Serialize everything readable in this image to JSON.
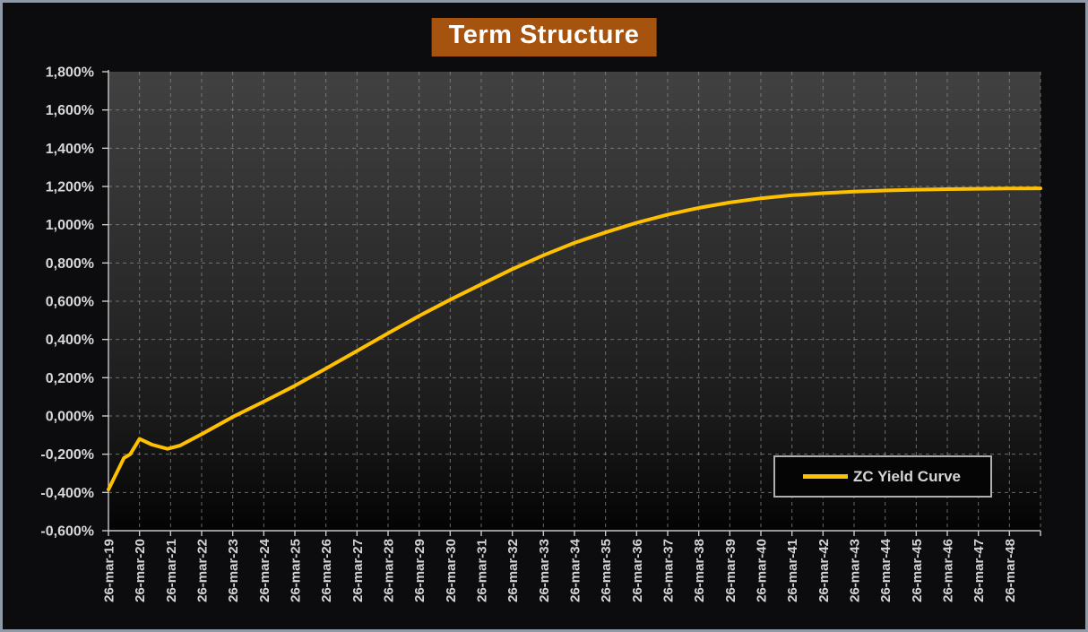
{
  "window": {
    "background_color": "#0C0C0E",
    "border_color": "#9099A6"
  },
  "chart_data": {
    "type": "line",
    "title": "Term Structure",
    "title_bg_color": "#A5530E",
    "title_text_color": "#FFFFFF",
    "xlabel": "",
    "ylabel": "",
    "xlim": [
      0,
      30
    ],
    "ylim": [
      -0.6,
      1.8
    ],
    "grid": "dashed",
    "plot_gradient": [
      "#414141",
      "#2B2B2B",
      "#1A1A1A",
      "#0B0B0B",
      "#030303"
    ],
    "x_tick_labels": [
      "26-mar-19",
      "26-mar-20",
      "26-mar-21",
      "26-mar-22",
      "26-mar-23",
      "26-mar-24",
      "26-mar-25",
      "26-mar-26",
      "26-mar-27",
      "26-mar-28",
      "26-mar-29",
      "26-mar-30",
      "26-mar-31",
      "26-mar-32",
      "26-mar-33",
      "26-mar-34",
      "26-mar-35",
      "26-mar-36",
      "26-mar-37",
      "26-mar-38",
      "26-mar-39",
      "26-mar-40",
      "26-mar-41",
      "26-mar-42",
      "26-mar-43",
      "26-mar-44",
      "26-mar-45",
      "26-mar-46",
      "26-mar-47",
      "26-mar-48"
    ],
    "y_ticks": [
      {
        "value": 1.8,
        "label": "1,800%"
      },
      {
        "value": 1.6,
        "label": "1,600%"
      },
      {
        "value": 1.4,
        "label": "1,400%"
      },
      {
        "value": 1.2,
        "label": "1,200%"
      },
      {
        "value": 1.0,
        "label": "1,000%"
      },
      {
        "value": 0.8,
        "label": "0,800%"
      },
      {
        "value": 0.6,
        "label": "0,600%"
      },
      {
        "value": 0.4,
        "label": "0,400%"
      },
      {
        "value": 0.2,
        "label": "0,200%"
      },
      {
        "value": 0.0,
        "label": "0,000%"
      },
      {
        "value": -0.2,
        "label": "-0,200%"
      },
      {
        "value": -0.4,
        "label": "-0,400%"
      },
      {
        "value": -0.6,
        "label": "-0,600%"
      }
    ],
    "series": [
      {
        "name": "ZC Yield Curve",
        "color": "#FFC000",
        "x_unit": "years after 26-mar-19",
        "y_unit": "percent",
        "points": [
          [
            0,
            -0.385
          ],
          [
            0.5,
            -0.22
          ],
          [
            0.7,
            -0.2
          ],
          [
            1,
            -0.12
          ],
          [
            1.4,
            -0.15
          ],
          [
            1.9,
            -0.172
          ],
          [
            2.3,
            -0.155
          ],
          [
            3,
            -0.095
          ],
          [
            4,
            -0.005
          ],
          [
            5,
            0.075
          ],
          [
            6,
            0.158
          ],
          [
            7,
            0.248
          ],
          [
            8,
            0.34
          ],
          [
            9,
            0.432
          ],
          [
            10,
            0.523
          ],
          [
            11,
            0.608
          ],
          [
            12,
            0.688
          ],
          [
            13,
            0.768
          ],
          [
            14,
            0.84
          ],
          [
            15,
            0.905
          ],
          [
            16,
            0.96
          ],
          [
            17,
            1.01
          ],
          [
            18,
            1.053
          ],
          [
            19,
            1.088
          ],
          [
            20,
            1.116
          ],
          [
            21,
            1.138
          ],
          [
            22,
            1.154
          ],
          [
            23,
            1.165
          ],
          [
            24,
            1.173
          ],
          [
            25,
            1.179
          ],
          [
            26,
            1.183
          ],
          [
            27,
            1.186
          ],
          [
            28,
            1.188
          ],
          [
            29,
            1.189
          ],
          [
            30,
            1.19
          ]
        ]
      }
    ],
    "legend": {
      "label": "ZC Yield Curve",
      "position": "bottom-right"
    }
  }
}
